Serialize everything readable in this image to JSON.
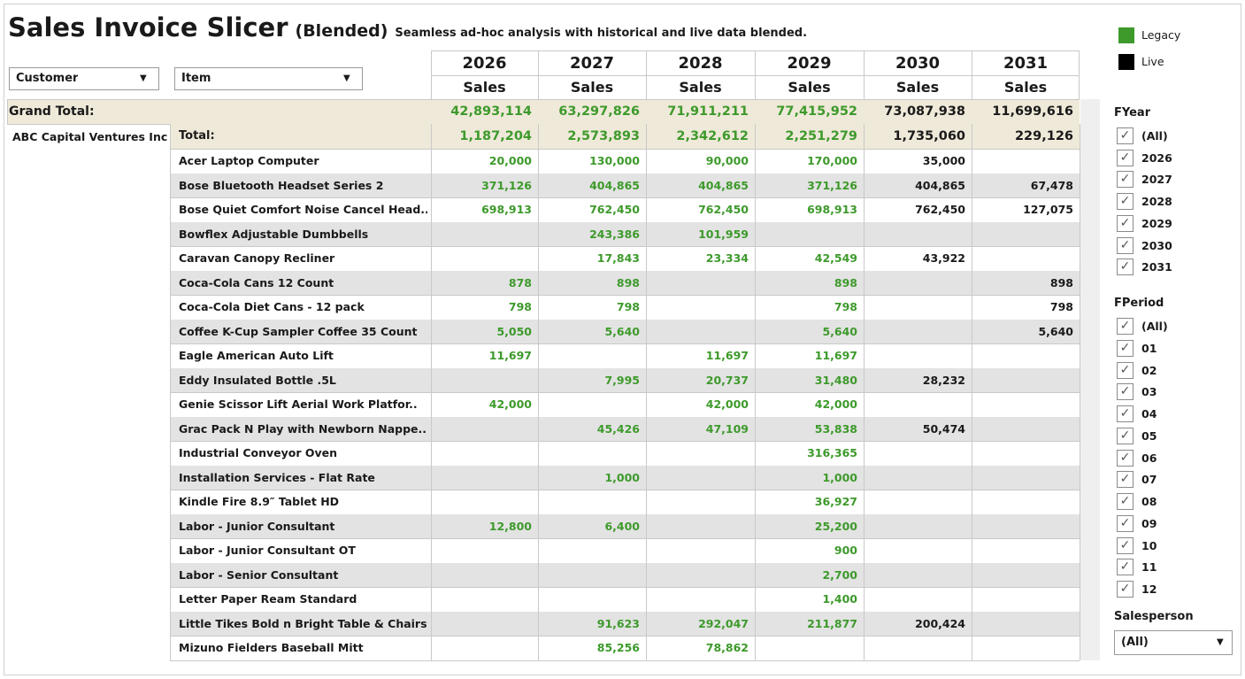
{
  "header": {
    "title": "Sales Invoice Slicer",
    "qualifier": "(Blended)",
    "description": "Seamless ad-hoc analysis with historical and live data blended."
  },
  "selectors": {
    "customer": "Customer",
    "item": "Item"
  },
  "columns": [
    {
      "year": "2026",
      "measure": "Sales",
      "color": "#3d9a2b"
    },
    {
      "year": "2027",
      "measure": "Sales",
      "color": "#3d9a2b"
    },
    {
      "year": "2028",
      "measure": "Sales",
      "color": "#3d9a2b"
    },
    {
      "year": "2029",
      "measure": "Sales",
      "color": "#3d9a2b"
    },
    {
      "year": "2030",
      "measure": "Sales",
      "color": "#1a1a1a"
    },
    {
      "year": "2031",
      "measure": "Sales",
      "color": "#1a1a1a"
    }
  ],
  "grand_total": {
    "label": "Grand Total:",
    "values": [
      "42,893,114",
      "63,297,826",
      "71,911,211",
      "77,415,952",
      "73,087,938",
      "11,699,616"
    ]
  },
  "customers": [
    {
      "name": "ABC Capital Ventures Inc",
      "total_label": "Total:",
      "total": [
        "1,187,204",
        "2,573,893",
        "2,342,612",
        "2,251,279",
        "1,735,060",
        "229,126"
      ],
      "items": [
        {
          "name": "Acer Laptop Computer",
          "values": [
            "20,000",
            "130,000",
            "90,000",
            "170,000",
            "35,000",
            null
          ]
        },
        {
          "name": "Bose Bluetooth Headset Series 2",
          "values": [
            "371,126",
            "404,865",
            "404,865",
            "371,126",
            "404,865",
            "67,478"
          ]
        },
        {
          "name": "Bose Quiet Comfort Noise Cancel Head..",
          "values": [
            "698,913",
            "762,450",
            "762,450",
            "698,913",
            "762,450",
            "127,075"
          ]
        },
        {
          "name": "Bowflex Adjustable Dumbbells",
          "values": [
            null,
            "243,386",
            "101,959",
            null,
            null,
            null
          ]
        },
        {
          "name": "Caravan Canopy Recliner",
          "values": [
            null,
            "17,843",
            "23,334",
            "42,549",
            "43,922",
            null
          ]
        },
        {
          "name": "Coca-Cola Cans 12 Count",
          "values": [
            "878",
            "898",
            null,
            "898",
            null,
            "898"
          ]
        },
        {
          "name": "Coca-Cola Diet Cans - 12 pack",
          "values": [
            "798",
            "798",
            null,
            "798",
            null,
            "798"
          ]
        },
        {
          "name": "Coffee K-Cup Sampler Coffee 35 Count",
          "values": [
            "5,050",
            "5,640",
            null,
            "5,640",
            null,
            "5,640"
          ]
        },
        {
          "name": "Eagle American Auto Lift",
          "values": [
            "11,697",
            null,
            "11,697",
            "11,697",
            null,
            null
          ]
        },
        {
          "name": "Eddy Insulated Bottle .5L",
          "values": [
            null,
            "7,995",
            "20,737",
            "31,480",
            "28,232",
            null
          ]
        },
        {
          "name": "Genie Scissor Lift Aerial Work Platfor..",
          "values": [
            "42,000",
            null,
            "42,000",
            "42,000",
            null,
            null
          ]
        },
        {
          "name": "Grac Pack N Play with Newborn Nappe..",
          "values": [
            null,
            "45,426",
            "47,109",
            "53,838",
            "50,474",
            null
          ]
        },
        {
          "name": "Industrial Conveyor Oven",
          "values": [
            null,
            null,
            null,
            "316,365",
            null,
            null
          ]
        },
        {
          "name": "Installation Services - Flat Rate",
          "values": [
            null,
            "1,000",
            null,
            "1,000",
            null,
            null
          ]
        },
        {
          "name": "Kindle Fire 8.9″ Tablet HD",
          "values": [
            null,
            null,
            null,
            "36,927",
            null,
            null
          ]
        },
        {
          "name": "Labor - Junior Consultant",
          "values": [
            "12,800",
            "6,400",
            null,
            "25,200",
            null,
            null
          ]
        },
        {
          "name": "Labor - Junior Consultant OT",
          "values": [
            null,
            null,
            null,
            "900",
            null,
            null
          ]
        },
        {
          "name": "Labor - Senior Consultant",
          "values": [
            null,
            null,
            null,
            "2,700",
            null,
            null
          ]
        },
        {
          "name": "Letter Paper Ream Standard",
          "values": [
            null,
            null,
            null,
            "1,400",
            null,
            null
          ]
        },
        {
          "name": "Little Tikes Bold n Bright Table & Chairs",
          "values": [
            null,
            "91,623",
            "292,047",
            "211,877",
            "200,424",
            null
          ]
        },
        {
          "name": "Mizuno Fielders Baseball Mitt",
          "values": [
            null,
            "85,256",
            "78,862",
            null,
            null,
            null
          ]
        }
      ]
    }
  ],
  "legend": [
    {
      "label": "Legacy",
      "color": "#3d9a2b"
    },
    {
      "label": "Live",
      "color": "#000000"
    }
  ],
  "filters": {
    "fyear": {
      "title": "FYear",
      "options": [
        "(All)",
        "2026",
        "2027",
        "2028",
        "2029",
        "2030",
        "2031"
      ]
    },
    "fperiod": {
      "title": "FPeriod",
      "options": [
        "(All)",
        "01",
        "02",
        "03",
        "04",
        "05",
        "06",
        "07",
        "08",
        "09",
        "10",
        "11",
        "12"
      ]
    },
    "salesperson": {
      "title": "Salesperson",
      "value": "(All)"
    }
  }
}
